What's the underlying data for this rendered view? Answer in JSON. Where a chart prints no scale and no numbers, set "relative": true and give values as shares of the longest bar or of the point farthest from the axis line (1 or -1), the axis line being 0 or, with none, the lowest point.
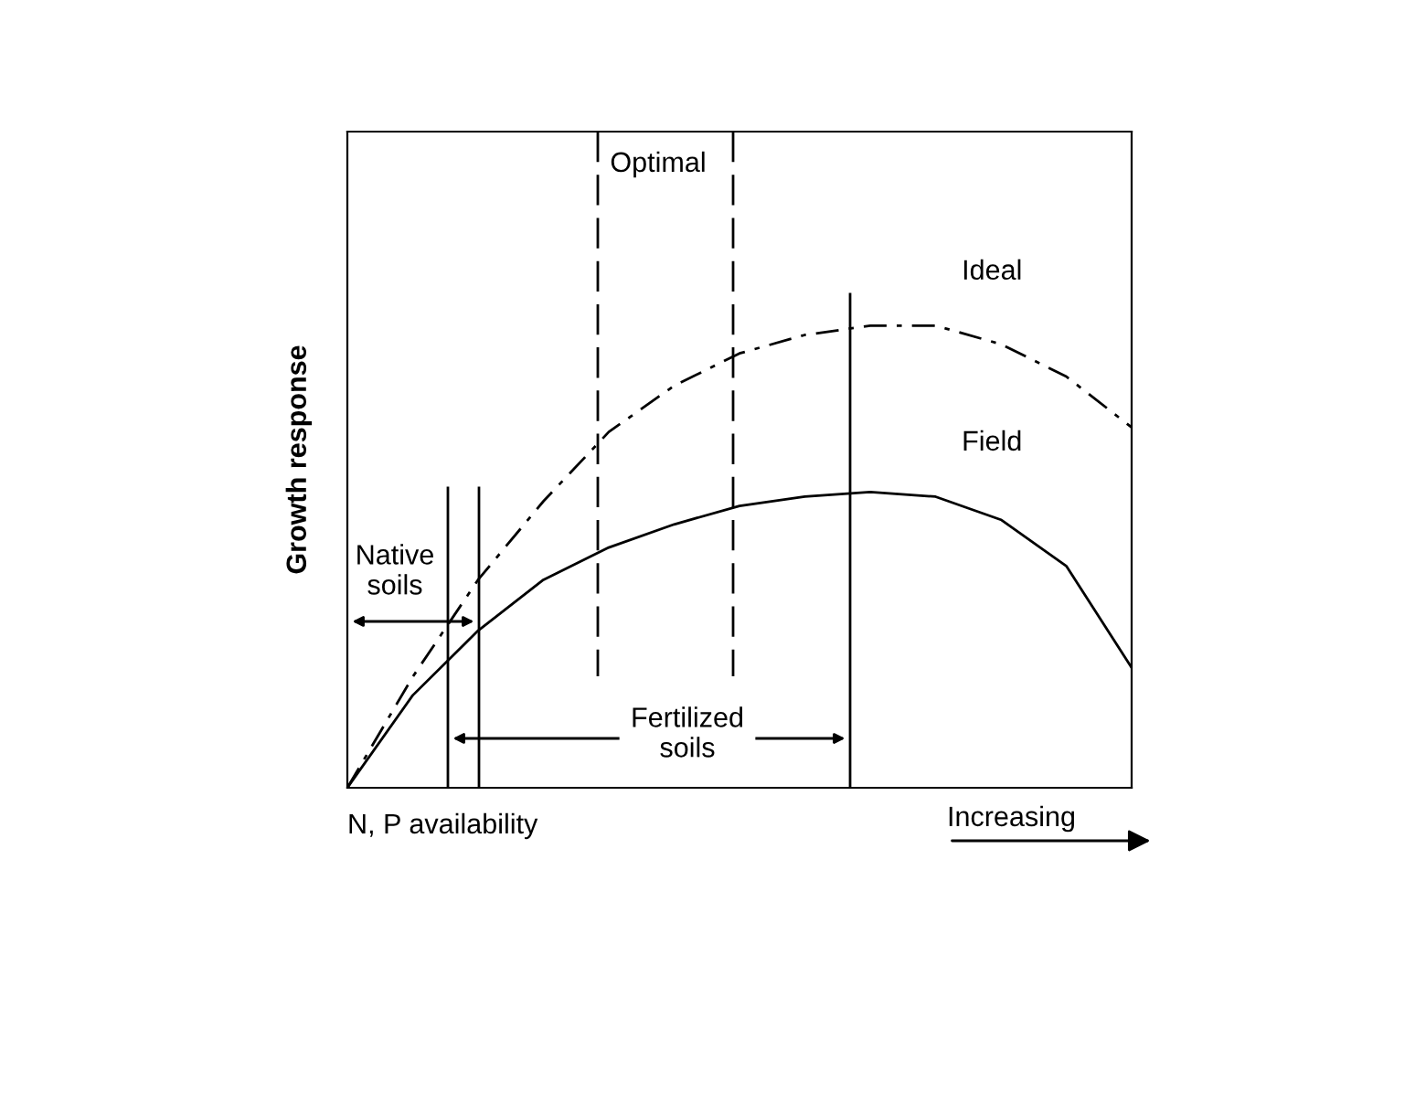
{
  "chart_data": {
    "type": "line",
    "relative": true,
    "ylabel": "Growth response",
    "xlabel": "N, P availability",
    "categories": [
      null,
      null,
      null,
      null,
      null,
      null,
      null,
      null,
      null,
      null,
      null,
      null,
      null
    ],
    "series": [
      {
        "name": "Ideal",
        "color": "#000000",
        "line_style": "dashed",
        "values": [
          0,
          0.24,
          0.45,
          0.62,
          0.77,
          0.87,
          0.94,
          0.98,
          1,
          1,
          0.96,
          0.89,
          0.78
        ]
      },
      {
        "name": "Field",
        "color": "#000000",
        "line_style": "solid",
        "values": [
          0,
          0.2,
          0.34,
          0.45,
          0.52,
          0.57,
          0.61,
          0.63,
          0.64,
          0.63,
          0.58,
          0.48,
          0.26
        ]
      }
    ],
    "annotations": [
      "Optimal",
      "Native\nsoils",
      "Fertilized\nsoils",
      "Increasing"
    ],
    "marker": "none"
  }
}
